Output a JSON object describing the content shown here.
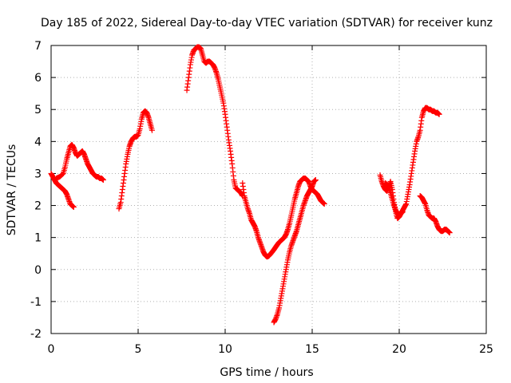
{
  "chart_data": {
    "type": "scatter",
    "title": "Day 185 of 2022, Sidereal Day-to-day VTEC variation (SDTVAR) for receiver kunz",
    "xlabel": "GPS time / hours",
    "ylabel": "SDTVAR / TECUs",
    "xlim": [
      0,
      25
    ],
    "ylim": [
      -2,
      7
    ],
    "xticks": [
      "0",
      "5",
      "10",
      "15",
      "20",
      "25"
    ],
    "yticks": [
      "-2",
      "-1",
      "0",
      "1",
      "2",
      "3",
      "4",
      "5",
      "6",
      "7"
    ],
    "grid": true,
    "marker": "plus",
    "color": "#ff0000",
    "series": [
      {
        "x": [
          0.0,
          0.1,
          0.2,
          0.3,
          0.4,
          0.5,
          0.6,
          0.7,
          0.8,
          0.9,
          1.0,
          1.1,
          1.2,
          1.3
        ],
        "y": [
          3.0,
          2.9,
          2.8,
          2.7,
          2.65,
          2.6,
          2.55,
          2.5,
          2.45,
          2.35,
          2.2,
          2.05,
          2.0,
          1.95
        ]
      },
      {
        "x": [
          0.3,
          0.5,
          0.7,
          0.8,
          0.9,
          1.0,
          1.1,
          1.2,
          1.3,
          1.4,
          1.5,
          1.6,
          1.7,
          1.8,
          1.9,
          2.0,
          2.1,
          2.2,
          2.3,
          2.4,
          2.5,
          2.6,
          2.7,
          2.8,
          2.9,
          3.0
        ],
        "y": [
          2.85,
          2.9,
          3.0,
          3.2,
          3.45,
          3.65,
          3.85,
          3.9,
          3.8,
          3.65,
          3.55,
          3.6,
          3.65,
          3.7,
          3.6,
          3.45,
          3.3,
          3.2,
          3.1,
          3.0,
          2.95,
          2.9,
          2.9,
          2.85,
          2.85,
          2.8
        ]
      },
      {
        "x": [
          3.9,
          4.0,
          4.1,
          4.2,
          4.3,
          4.4,
          4.5,
          4.6,
          4.7,
          4.8,
          4.9,
          5.0,
          5.1,
          5.2,
          5.3,
          5.4,
          5.5,
          5.6,
          5.7,
          5.8
        ],
        "y": [
          1.9,
          2.1,
          2.5,
          2.9,
          3.3,
          3.6,
          3.85,
          4.0,
          4.1,
          4.15,
          4.15,
          4.2,
          4.4,
          4.7,
          4.9,
          4.95,
          4.9,
          4.75,
          4.55,
          4.35
        ]
      },
      {
        "x": [
          7.8,
          7.9,
          8.0,
          8.1,
          8.2,
          8.3,
          8.4,
          8.5,
          8.6,
          8.7,
          8.8,
          8.9,
          9.0,
          9.1,
          9.2,
          9.3,
          9.4,
          9.5,
          9.6,
          9.7,
          9.8,
          9.9,
          10.0,
          10.1,
          10.2,
          10.3,
          10.4,
          10.5,
          10.6,
          10.7,
          10.8,
          10.9,
          11.0
        ],
        "y": [
          5.6,
          6.0,
          6.4,
          6.7,
          6.85,
          6.9,
          6.95,
          6.95,
          6.9,
          6.7,
          6.5,
          6.45,
          6.5,
          6.5,
          6.45,
          6.4,
          6.3,
          6.15,
          5.95,
          5.7,
          5.45,
          5.2,
          4.85,
          4.45,
          4.05,
          3.7,
          3.3,
          2.8,
          2.55,
          2.5,
          2.45,
          2.4,
          2.3
        ]
      },
      {
        "x": [
          11.0,
          11.1,
          11.2,
          11.3,
          11.4,
          11.5,
          11.6,
          11.7,
          11.8,
          11.9,
          12.0,
          12.1,
          12.2,
          12.3,
          12.4,
          12.5,
          12.6,
          12.7,
          12.8,
          12.9,
          13.0,
          13.1,
          13.2,
          13.3,
          13.4,
          13.5,
          13.6,
          13.7,
          13.8,
          13.9,
          14.0,
          14.1,
          14.2,
          14.3,
          14.4,
          14.5,
          14.6,
          14.7,
          14.8,
          14.9,
          15.0,
          15.1,
          15.2,
          15.3,
          15.4,
          15.5,
          15.6,
          15.7
        ],
        "y": [
          2.7,
          2.3,
          2.1,
          1.9,
          1.75,
          1.55,
          1.45,
          1.35,
          1.2,
          1.0,
          0.85,
          0.7,
          0.55,
          0.45,
          0.4,
          0.42,
          0.48,
          0.55,
          0.62,
          0.7,
          0.78,
          0.85,
          0.9,
          0.95,
          1.0,
          1.1,
          1.25,
          1.45,
          1.7,
          1.95,
          2.2,
          2.4,
          2.6,
          2.75,
          2.8,
          2.85,
          2.85,
          2.8,
          2.75,
          2.6,
          2.5,
          2.45,
          2.4,
          2.35,
          2.25,
          2.15,
          2.1,
          2.05
        ]
      },
      {
        "x": [
          12.8,
          12.9,
          13.0,
          13.1,
          13.2,
          13.3,
          13.4,
          13.5,
          13.6,
          13.7,
          13.8,
          13.9,
          14.0,
          14.1,
          14.2,
          14.3,
          14.4,
          14.5,
          14.6,
          14.7,
          14.8,
          14.9,
          15.0,
          15.1,
          15.2
        ],
        "y": [
          -1.65,
          -1.55,
          -1.4,
          -1.2,
          -0.9,
          -0.6,
          -0.3,
          0.0,
          0.3,
          0.55,
          0.75,
          0.9,
          1.05,
          1.2,
          1.4,
          1.6,
          1.8,
          2.0,
          2.15,
          2.3,
          2.4,
          2.5,
          2.6,
          2.75,
          2.8
        ]
      },
      {
        "x": [
          18.9,
          19.0,
          19.1,
          19.2,
          19.3,
          19.4,
          19.5,
          19.6,
          19.7,
          19.8,
          19.9,
          20.0,
          20.1,
          20.2,
          20.3,
          20.4,
          20.5,
          20.6,
          20.7,
          20.8,
          20.9,
          21.0,
          21.1,
          21.2,
          21.3,
          21.4,
          21.5,
          21.6,
          21.7,
          21.8,
          21.9,
          22.0,
          22.1,
          22.2,
          22.3
        ],
        "y": [
          2.95,
          2.75,
          2.6,
          2.5,
          2.45,
          2.6,
          2.75,
          2.5,
          2.1,
          1.8,
          1.6,
          1.65,
          1.75,
          1.85,
          1.95,
          2.05,
          2.35,
          2.65,
          3.0,
          3.35,
          3.7,
          4.0,
          4.15,
          4.35,
          4.75,
          4.95,
          5.05,
          5.05,
          5.0,
          5.0,
          4.95,
          4.95,
          4.9,
          4.9,
          4.85
        ]
      },
      {
        "x": [
          19.2,
          19.3,
          19.4,
          19.5,
          19.6,
          19.7,
          19.8,
          19.9,
          20.0,
          20.1,
          20.2
        ],
        "y": [
          2.7,
          2.65,
          2.55,
          2.4,
          2.2,
          2.0,
          1.85,
          1.75,
          1.7,
          1.75,
          1.8
        ]
      },
      {
        "x": [
          21.2,
          21.3,
          21.4,
          21.5,
          21.6,
          21.7,
          21.8,
          21.9,
          22.0,
          22.1,
          22.2,
          22.3,
          22.4,
          22.5,
          22.6,
          22.7,
          22.8,
          22.9
        ],
        "y": [
          2.3,
          2.25,
          2.15,
          2.05,
          1.85,
          1.7,
          1.65,
          1.6,
          1.6,
          1.5,
          1.35,
          1.25,
          1.2,
          1.2,
          1.25,
          1.25,
          1.2,
          1.15
        ]
      }
    ]
  }
}
